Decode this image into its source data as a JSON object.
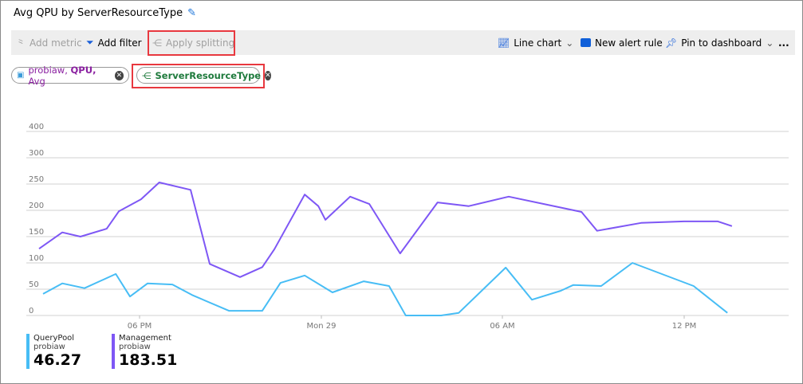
{
  "header": {
    "title": "Avg QPU by ServerResourceType",
    "edit_icon": "pencil-icon"
  },
  "toolbar": {
    "add_metric": "Add metric",
    "add_filter": "Add filter",
    "apply_splitting": "Apply splitting",
    "chart_type": "Line chart",
    "new_alert_rule": "New alert rule",
    "pin_to_dashboard": "Pin to dashboard",
    "more": "..."
  },
  "pills": {
    "metric": {
      "resource": "probiaw,",
      "metric": "QPU,",
      "aggregation": "Avg"
    },
    "split": {
      "label": "ServerResourceType"
    }
  },
  "colors": {
    "querypool": "#47bdf5",
    "management": "#7e57f5",
    "highlight": "#e8383f"
  },
  "chart_data": {
    "type": "line",
    "ytick_labels": [
      "0",
      "50",
      "100",
      "150",
      "200",
      "250",
      "300",
      "400"
    ],
    "xtick_labels": [
      "06 PM",
      "Mon 29",
      "06 AM",
      "12 PM"
    ],
    "grid": true,
    "legend_placement": "bottom-left",
    "series": [
      {
        "name": "QueryPool",
        "resource": "probiaw",
        "value": "46.27",
        "color": "#47bdf5",
        "points": [
          [
            "28 14:49",
            41
          ],
          [
            "28 15:27",
            61
          ],
          [
            "28 16:11",
            52
          ],
          [
            "28 17:13",
            79
          ],
          [
            "28 17:41",
            36
          ],
          [
            "28 18:16",
            61
          ],
          [
            "28 19:05",
            59
          ],
          [
            "28 19:44",
            39
          ],
          [
            "28 20:57",
            9
          ],
          [
            "28 22:03",
            9
          ],
          [
            "28 22:39",
            62
          ],
          [
            "28 23:27",
            76
          ],
          [
            "29 00:22",
            44
          ],
          [
            "29 01:24",
            65
          ],
          [
            "29 02:14",
            56
          ],
          [
            "29 02:47",
            0
          ],
          [
            "29 03:57",
            0
          ],
          [
            "29 04:32",
            5
          ],
          [
            "29 06:05",
            91
          ],
          [
            "29 06:57",
            30
          ],
          [
            "29 07:54",
            47
          ],
          [
            "29 08:19",
            58
          ],
          [
            "29 09:14",
            56
          ],
          [
            "29 10:16",
            100
          ],
          [
            "29 12:17",
            56
          ],
          [
            "29 13:24",
            5
          ]
        ]
      },
      {
        "name": "Management",
        "resource": "probiaw",
        "value": "183.51",
        "color": "#7e57f5",
        "points": [
          [
            "28 14:41",
            127
          ],
          [
            "28 15:27",
            158
          ],
          [
            "28 16:03",
            150
          ],
          [
            "28 16:55",
            165
          ],
          [
            "28 17:19",
            198
          ],
          [
            "28 18:03",
            221
          ],
          [
            "28 18:39",
            253
          ],
          [
            "28 19:41",
            239
          ],
          [
            "28 20:19",
            98
          ],
          [
            "28 21:19",
            73
          ],
          [
            "28 22:03",
            92
          ],
          [
            "28 22:27",
            126
          ],
          [
            "28 23:27",
            230
          ],
          [
            "28 23:54",
            208
          ],
          [
            "29 00:08",
            182
          ],
          [
            "29 00:57",
            226
          ],
          [
            "29 01:35",
            212
          ],
          [
            "29 02:36",
            118
          ],
          [
            "29 03:50",
            215
          ],
          [
            "29 04:52",
            208
          ],
          [
            "29 06:11",
            226
          ],
          [
            "29 08:35",
            197
          ],
          [
            "29 09:06",
            161
          ],
          [
            "29 10:33",
            176
          ],
          [
            "29 11:58",
            179
          ],
          [
            "29 13:05",
            179
          ],
          [
            "29 13:33",
            170
          ]
        ]
      }
    ]
  }
}
